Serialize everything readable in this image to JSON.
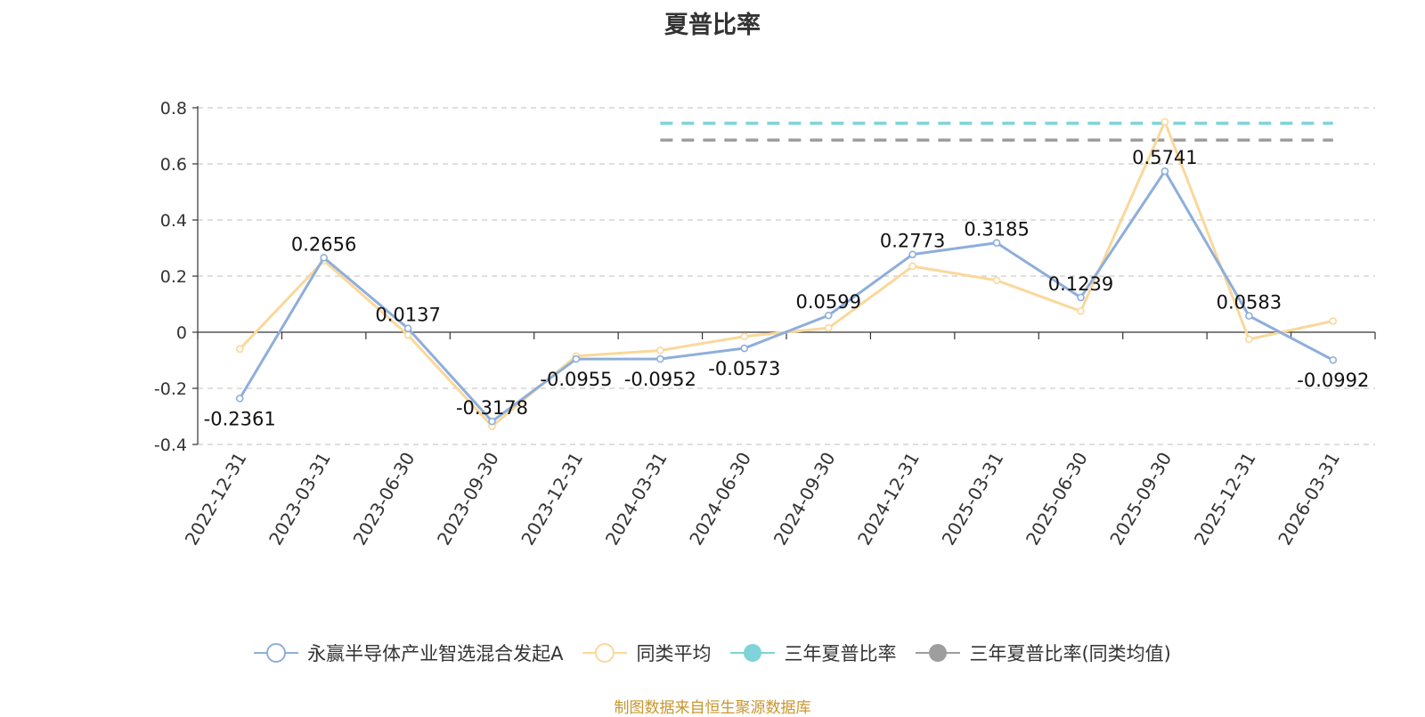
{
  "chart_data": {
    "type": "line",
    "title": "夏普比率",
    "categories": [
      "2022-12-31",
      "2023-03-31",
      "2023-06-30",
      "2023-09-30",
      "2023-12-31",
      "2024-03-31",
      "2024-06-30",
      "2024-09-30",
      "2024-12-31",
      "2025-03-31",
      "2025-06-30",
      "2025-09-30",
      "2025-12-31",
      "2026-03-31"
    ],
    "ylim": [
      -0.4,
      0.8
    ],
    "yticks": [
      -0.4,
      -0.2,
      0,
      0.2,
      0.4,
      0.6,
      0.8
    ],
    "grid": true,
    "legend_position": "bottom",
    "series": [
      {
        "name": "永赢半导体产业智选混合发起A",
        "color": "#8eaedb",
        "values": [
          -0.2361,
          0.2656,
          0.0137,
          -0.3178,
          -0.0955,
          -0.0952,
          -0.0573,
          0.0599,
          0.2773,
          0.3185,
          0.1239,
          0.5741,
          0.0583,
          -0.0992
        ],
        "labels": [
          "-0.2361",
          "0.2656",
          "0.0137",
          "-0.3178",
          "-0.0955",
          "-0.0952",
          "-0.0573",
          "0.0599",
          "0.2773",
          "0.3185",
          "0.1239",
          "0.5741",
          "0.0583",
          "-0.0992"
        ]
      },
      {
        "name": "同类平均",
        "color": "#fad89a",
        "values": [
          -0.06,
          0.255,
          -0.01,
          -0.335,
          -0.085,
          -0.065,
          -0.015,
          0.015,
          0.235,
          0.185,
          0.075,
          0.75,
          -0.025,
          0.04
        ]
      },
      {
        "name": "三年夏普比率",
        "color": "#7ed4d8",
        "style": "dashed",
        "value": 0.745,
        "x_range": [
          "2024-03-31",
          "2026-03-31"
        ]
      },
      {
        "name": "三年夏普比率(同类均值)",
        "color": "#9e9e9e",
        "style": "dashed",
        "value": 0.685,
        "x_range": [
          "2024-03-31",
          "2026-03-31"
        ]
      }
    ]
  },
  "footer": "制图数据来自恒生聚源数据库"
}
